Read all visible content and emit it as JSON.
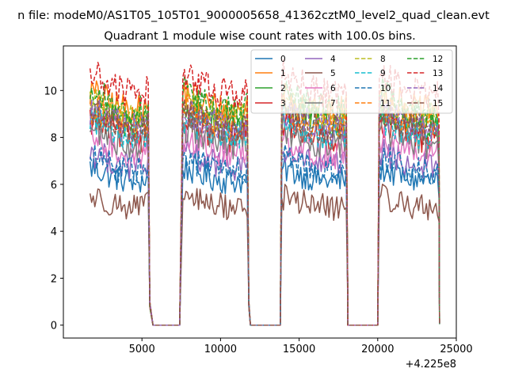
{
  "chart_data": {
    "type": "line",
    "suptitle": "n file: modeM0/AS1T05_105T01_9000005658_41362cztM0_level2_quad_clean.evt",
    "title": "Quadrant 1 module wise count rates with 100.0s bins.",
    "xlabel": "",
    "ylabel": "",
    "x_offset_label": "+4.225e8",
    "xlim": [
      0,
      25000
    ],
    "ylim": [
      -0.55,
      11.9
    ],
    "x_ticks": [
      5000,
      10000,
      15000,
      20000,
      25000
    ],
    "x_tick_labels": [
      "5000",
      "10000",
      "15000",
      "20000",
      "25000"
    ],
    "y_ticks": [
      0,
      2,
      4,
      6,
      8,
      10
    ],
    "y_tick_labels": [
      "0",
      "2",
      "4",
      "6",
      "8",
      "10"
    ],
    "legend_position": "top-right",
    "bin_seconds": 100.0,
    "on_segments": [
      [
        1700,
        5400
      ],
      [
        7600,
        11700
      ],
      [
        13900,
        18000
      ],
      [
        20100,
        23900
      ]
    ],
    "off_segments": [
      [
        5700,
        7400
      ],
      [
        11900,
        13800
      ],
      [
        18100,
        20000
      ]
    ],
    "series": [
      {
        "name": "0",
        "color": "#1f77b4",
        "dash": "solid",
        "mean_rate": 6.0
      },
      {
        "name": "1",
        "color": "#ff7f0e",
        "dash": "solid",
        "mean_rate": 8.9
      },
      {
        "name": "2",
        "color": "#2ca02c",
        "dash": "solid",
        "mean_rate": 8.3
      },
      {
        "name": "3",
        "color": "#d62728",
        "dash": "solid",
        "mean_rate": 7.8
      },
      {
        "name": "4",
        "color": "#9467bd",
        "dash": "solid",
        "mean_rate": 6.6
      },
      {
        "name": "5",
        "color": "#8c564b",
        "dash": "solid",
        "mean_rate": 4.9
      },
      {
        "name": "6",
        "color": "#e377c2",
        "dash": "solid",
        "mean_rate": 7.1
      },
      {
        "name": "7",
        "color": "#7f7f7f",
        "dash": "solid",
        "mean_rate": 7.5
      },
      {
        "name": "8",
        "color": "#bcbd22",
        "dash": "dashed",
        "mean_rate": 8.6
      },
      {
        "name": "9",
        "color": "#17becf",
        "dash": "dashed",
        "mean_rate": 7.9
      },
      {
        "name": "10",
        "color": "#1f77b4",
        "dash": "dashed",
        "mean_rate": 6.4
      },
      {
        "name": "11",
        "color": "#ff7f0e",
        "dash": "dashed",
        "mean_rate": 8.3
      },
      {
        "name": "12",
        "color": "#2ca02c",
        "dash": "dashed",
        "mean_rate": 8.9
      },
      {
        "name": "13",
        "color": "#d62728",
        "dash": "dashed",
        "mean_rate": 9.6
      },
      {
        "name": "14",
        "color": "#9467bd",
        "dash": "dashed",
        "mean_rate": 8.2
      },
      {
        "name": "15",
        "color": "#8c564b",
        "dash": "dashed",
        "mean_rate": 8.1
      }
    ]
  }
}
